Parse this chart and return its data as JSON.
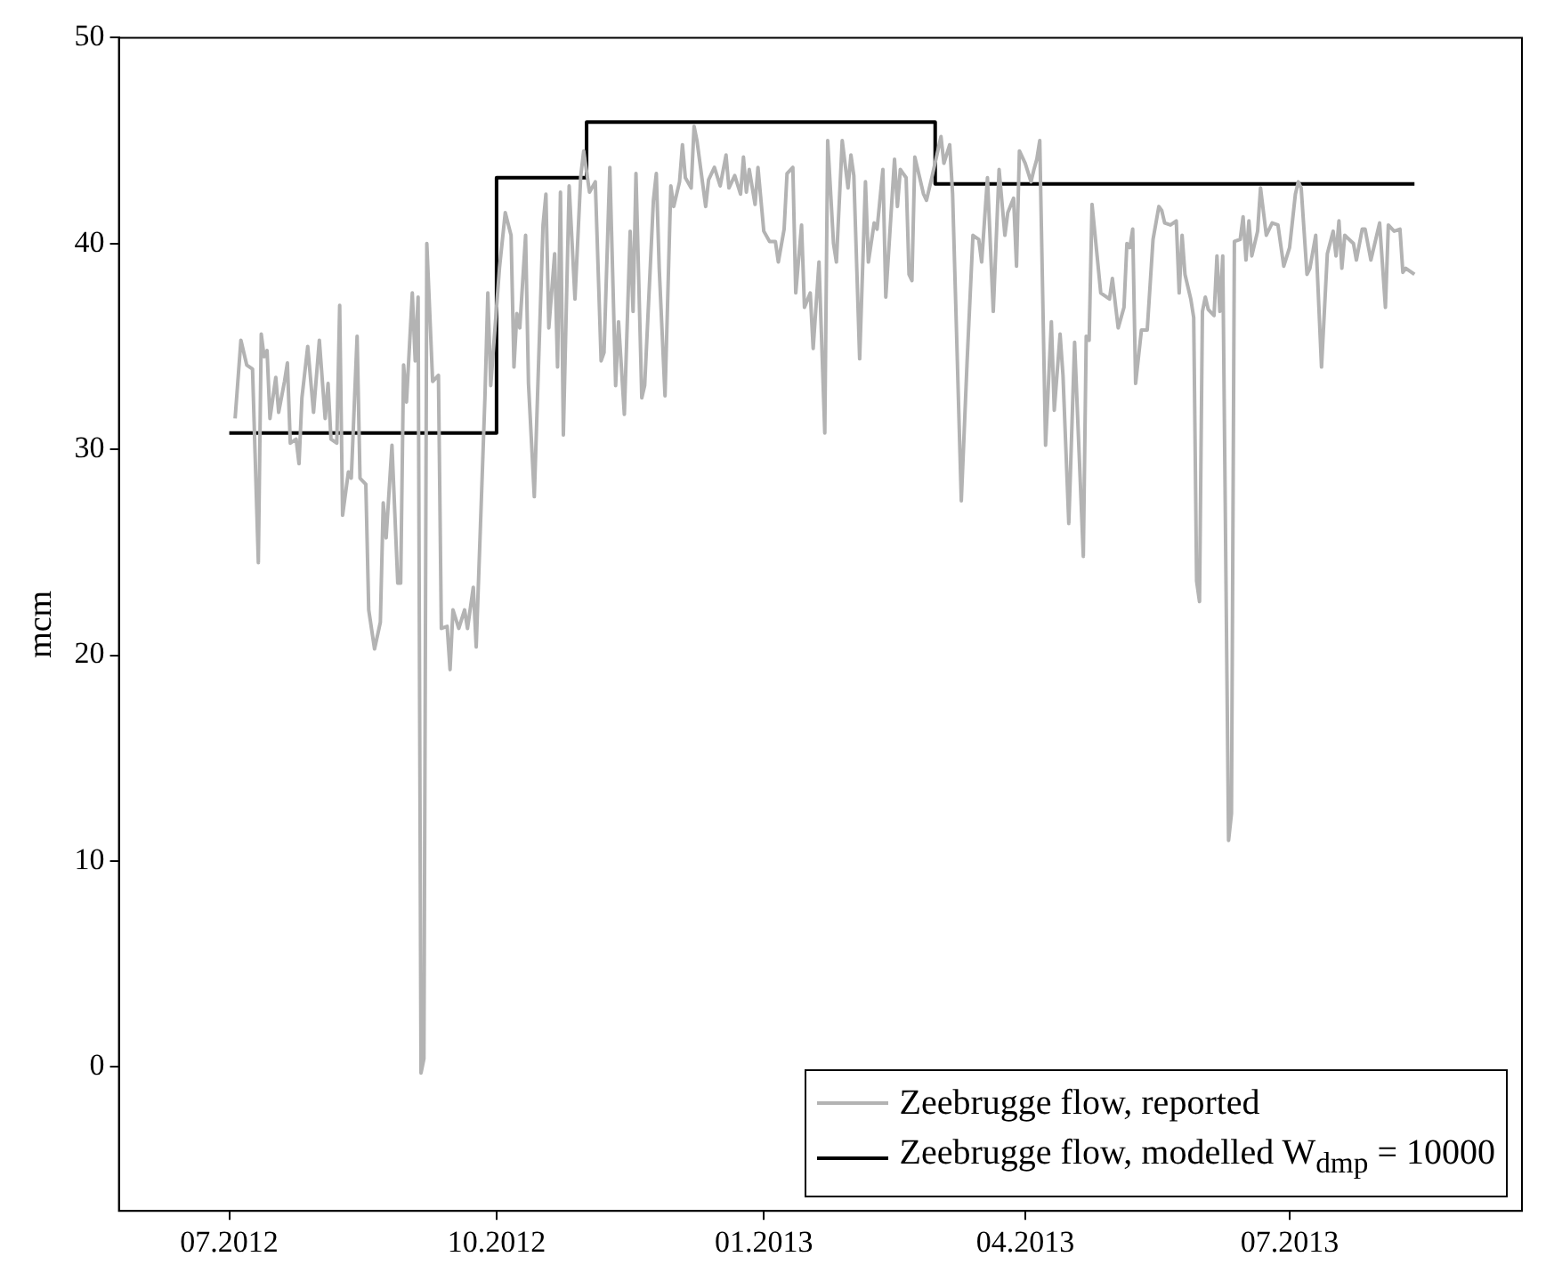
{
  "chart_data": {
    "type": "line",
    "ylabel": "mcm",
    "xlim": [
      "2012-05-24",
      "2013-09-19"
    ],
    "ylim": [
      -7,
      50
    ],
    "yticks": [
      0,
      10,
      20,
      30,
      40,
      50
    ],
    "xticks": [
      {
        "value": "2012-07",
        "label": "07.2012"
      },
      {
        "value": "2012-10",
        "label": "10.2012"
      },
      {
        "value": "2013-01",
        "label": "01.2013"
      },
      {
        "value": "2013-04",
        "label": "04.2013"
      },
      {
        "value": "2013-07",
        "label": "07.2013"
      }
    ],
    "grid": false,
    "legend": "bottom right",
    "marker": "none",
    "line_style": "solid",
    "series": [
      {
        "name": "Zeebrugge flow, reported",
        "color": "#b3b3b3",
        "x": [
          "2012-07-03",
          "2012-07-04",
          "2012-07-05",
          "2012-07-07",
          "2012-07-09",
          "2012-07-11",
          "2012-07-12",
          "2012-07-13",
          "2012-07-14",
          "2012-07-15",
          "2012-07-17",
          "2012-07-18",
          "2012-07-20",
          "2012-07-21",
          "2012-07-22",
          "2012-07-24",
          "2012-07-25",
          "2012-07-26",
          "2012-07-28",
          "2012-07-30",
          "2012-08-01",
          "2012-08-03",
          "2012-08-04",
          "2012-08-05",
          "2012-08-07",
          "2012-08-08",
          "2012-08-09",
          "2012-08-11",
          "2012-08-12",
          "2012-08-14",
          "2012-08-15",
          "2012-08-17",
          "2012-08-18",
          "2012-08-20",
          "2012-08-22",
          "2012-08-23",
          "2012-08-24",
          "2012-08-26",
          "2012-08-28",
          "2012-08-29",
          "2012-08-30",
          "2012-08-31",
          "2012-09-02",
          "2012-09-03",
          "2012-09-04",
          "2012-09-05",
          "2012-09-06",
          "2012-09-07",
          "2012-09-09",
          "2012-09-11",
          "2012-09-12",
          "2012-09-14",
          "2012-09-15",
          "2012-09-16",
          "2012-09-18",
          "2012-09-20",
          "2012-09-21",
          "2012-09-23",
          "2012-09-24",
          "2012-09-27",
          "2012-09-28",
          "2012-09-29",
          "2012-10-01",
          "2012-10-02",
          "2012-10-04",
          "2012-10-06",
          "2012-10-07",
          "2012-10-08",
          "2012-10-09",
          "2012-10-11",
          "2012-10-12",
          "2012-10-14",
          "2012-10-17",
          "2012-10-18",
          "2012-10-19",
          "2012-10-21",
          "2012-10-22",
          "2012-10-23",
          "2012-10-24",
          "2012-10-26",
          "2012-10-28",
          "2012-10-30",
          "2012-10-31",
          "2012-11-02",
          "2012-11-04",
          "2012-11-06",
          "2012-11-07",
          "2012-11-09",
          "2012-11-11",
          "2012-11-12",
          "2012-11-14",
          "2012-11-16",
          "2012-11-17",
          "2012-11-18",
          "2012-11-20",
          "2012-11-21",
          "2012-11-24",
          "2012-11-25",
          "2012-11-26",
          "2012-11-28",
          "2012-11-30",
          "2012-12-01",
          "2012-12-03",
          "2012-12-04",
          "2012-12-05",
          "2012-12-07",
          "2012-12-08",
          "2012-12-09",
          "2012-12-12",
          "2012-12-13",
          "2012-12-15",
          "2012-12-17",
          "2012-12-19",
          "2012-12-20",
          "2012-12-22",
          "2012-12-24",
          "2012-12-25",
          "2012-12-26",
          "2012-12-27",
          "2012-12-29",
          "2012-12-30",
          "2013-01-01",
          "2013-01-03",
          "2013-01-05",
          "2013-01-06",
          "2013-01-08",
          "2013-01-09",
          "2013-01-11",
          "2013-01-12",
          "2013-01-14",
          "2013-01-15",
          "2013-01-17",
          "2013-01-18",
          "2013-01-20",
          "2013-01-22",
          "2013-01-23",
          "2013-01-25",
          "2013-01-26",
          "2013-01-28",
          "2013-01-30",
          "2013-01-31",
          "2013-02-01",
          "2013-02-03",
          "2013-02-05",
          "2013-02-06",
          "2013-02-08",
          "2013-02-09",
          "2013-02-11",
          "2013-02-12",
          "2013-02-15",
          "2013-02-16",
          "2013-02-17",
          "2013-02-19",
          "2013-02-20",
          "2013-02-21",
          "2013-02-22",
          "2013-02-25",
          "2013-02-26",
          "2013-02-28",
          "2013-03-03",
          "2013-03-04",
          "2013-03-06",
          "2013-03-07",
          "2013-03-10",
          "2013-03-12",
          "2013-03-14",
          "2013-03-16",
          "2013-03-17",
          "2013-03-19",
          "2013-03-21",
          "2013-03-23",
          "2013-03-25",
          "2013-03-26",
          "2013-03-28",
          "2013-03-29",
          "2013-03-30",
          "2013-04-01",
          "2013-04-03",
          "2013-04-04",
          "2013-04-05",
          "2013-04-06",
          "2013-04-08",
          "2013-04-10",
          "2013-04-11",
          "2013-04-13",
          "2013-04-14",
          "2013-04-16",
          "2013-04-18",
          "2013-04-21",
          "2013-04-22",
          "2013-04-23",
          "2013-04-24",
          "2013-04-27",
          "2013-04-30",
          "2013-05-01",
          "2013-05-03",
          "2013-05-05",
          "2013-05-06",
          "2013-05-07",
          "2013-05-08",
          "2013-05-09",
          "2013-05-11",
          "2013-05-13",
          "2013-05-15",
          "2013-05-17",
          "2013-05-18",
          "2013-05-19",
          "2013-05-21",
          "2013-05-23",
          "2013-05-24",
          "2013-05-25",
          "2013-05-26",
          "2013-05-28",
          "2013-05-29",
          "2013-05-30",
          "2013-05-31",
          "2013-06-01",
          "2013-06-02",
          "2013-06-03",
          "2013-06-05",
          "2013-06-06",
          "2013-06-07",
          "2013-06-08",
          "2013-06-10",
          "2013-06-11",
          "2013-06-12",
          "2013-06-14",
          "2013-06-15",
          "2013-06-16",
          "2013-06-17",
          "2013-06-18",
          "2013-06-20",
          "2013-06-21",
          "2013-06-23",
          "2013-06-25",
          "2013-06-27",
          "2013-06-29",
          "2013-07-01",
          "2013-07-03",
          "2013-07-04",
          "2013-07-05",
          "2013-07-07",
          "2013-07-08",
          "2013-07-10",
          "2013-07-12",
          "2013-07-14",
          "2013-07-16",
          "2013-07-17",
          "2013-07-18",
          "2013-07-19",
          "2013-07-20",
          "2013-07-23",
          "2013-07-24",
          "2013-07-26",
          "2013-07-27",
          "2013-07-29",
          "2013-08-01",
          "2013-08-03",
          "2013-08-04",
          "2013-08-06",
          "2013-08-08",
          "2013-08-09",
          "2013-08-10",
          "2013-08-13"
        ],
        "values": [
          31.5,
          33.4,
          35.3,
          34.1,
          33.9,
          24.5,
          35.6,
          34.5,
          34.8,
          31.5,
          33.5,
          31.8,
          33.3,
          34.2,
          30.3,
          30.5,
          29.3,
          32.5,
          35.0,
          31.8,
          35.3,
          31.5,
          33.2,
          30.5,
          30.3,
          37.0,
          26.8,
          28.9,
          28.6,
          35.5,
          28.6,
          28.3,
          22.2,
          20.3,
          21.6,
          27.4,
          25.7,
          30.2,
          23.5,
          23.5,
          34.1,
          32.3,
          37.6,
          34.3,
          37.4,
          -0.3,
          0.4,
          40.0,
          33.3,
          33.6,
          21.3,
          21.4,
          19.3,
          22.2,
          21.3,
          22.2,
          21.3,
          23.3,
          20.4,
          32.5,
          37.6,
          33.1,
          36.9,
          38.8,
          41.5,
          40.4,
          34.0,
          36.6,
          35.9,
          40.4,
          33.2,
          27.7,
          40.9,
          42.4,
          35.9,
          39.5,
          34.0,
          42.5,
          30.7,
          42.8,
          37.3,
          43.3,
          44.5,
          42.5,
          43.0,
          34.3,
          34.7,
          43.7,
          33.1,
          36.2,
          31.7,
          40.6,
          36.7,
          43.4,
          32.5,
          33.1,
          42.1,
          43.4,
          38.8,
          32.6,
          42.8,
          41.8,
          43.0,
          44.8,
          43.2,
          42.7,
          45.7,
          45.0,
          41.8,
          43.1,
          43.7,
          42.8,
          44.3,
          42.7,
          43.3,
          42.4,
          44.2,
          42.5,
          43.6,
          41.9,
          43.7,
          40.6,
          40.1,
          40.1,
          39.1,
          40.7,
          43.4,
          43.7,
          37.6,
          40.9,
          36.9,
          37.6,
          34.9,
          39.1,
          30.8,
          45.0,
          40.0,
          39.1,
          45.0,
          42.7,
          44.3,
          43.3,
          34.4,
          43.0,
          39.1,
          41.0,
          40.7,
          43.6,
          37.4,
          44.1,
          41.8,
          43.6,
          43.2,
          38.5,
          38.2,
          44.2,
          42.4,
          42.1,
          43.3,
          45.2,
          43.9,
          44.8,
          42.4,
          27.5,
          34.3,
          40.4,
          40.2,
          39.1,
          43.2,
          36.7,
          43.6,
          40.4,
          41.5,
          42.2,
          38.9,
          44.5,
          43.9,
          43.0,
          43.6,
          44.1,
          45.0,
          30.2,
          36.2,
          31.9,
          35.6,
          33.6,
          26.4,
          35.2,
          24.8,
          35.5,
          35.3,
          41.9,
          37.6,
          37.3,
          38.3,
          35.9,
          36.9,
          40.0,
          39.8,
          40.7,
          33.2,
          35.8,
          35.8,
          40.2,
          41.8,
          41.6,
          41.0,
          40.9,
          41.1,
          37.6,
          40.4,
          38.5,
          37.3,
          36.4,
          23.6,
          22.6,
          36.7,
          37.4,
          36.8,
          36.5,
          39.4,
          36.7,
          39.4,
          11.0,
          12.3,
          40.1,
          40.2,
          41.3,
          39.2,
          41.1,
          39.4,
          40.6,
          42.7,
          40.4,
          41.0,
          40.9,
          38.9,
          39.8,
          42.4,
          43.0,
          42.7,
          38.5,
          38.8,
          40.4,
          34.0,
          39.5,
          40.6,
          39.4,
          41.1,
          38.8,
          40.4,
          40.0,
          39.2,
          40.7,
          40.7,
          39.2,
          41.0,
          36.9,
          40.9,
          40.6,
          40.7,
          38.6,
          38.8,
          38.5
        ]
      },
      {
        "name": "Zeebrugge flow, modelled W$_{dmp}$ = 10000",
        "type": "step",
        "color": "#000000",
        "x": [
          "2012-07-01",
          "2012-10-01",
          "2012-11-01",
          "2013-03-01",
          "2013-08-13"
        ],
        "values": [
          30.8,
          43.2,
          45.9,
          42.9,
          42.9
        ]
      }
    ]
  }
}
